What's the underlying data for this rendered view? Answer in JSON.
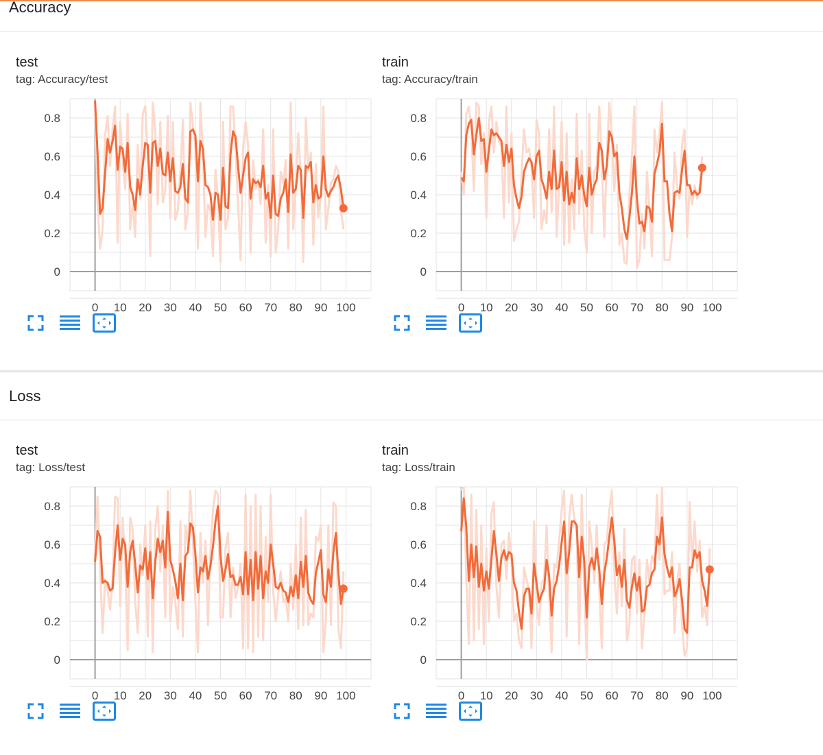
{
  "sections": [
    {
      "title": "Accuracy",
      "cards": [
        {
          "title": "test",
          "tag": "tag: Accuracy/test",
          "chart_data": {
            "type": "line",
            "xlim": [
              -10,
              110
            ],
            "ylim": [
              -0.1,
              0.9
            ],
            "x_ticks": [
              "0",
              "10",
              "20",
              "30",
              "40",
              "50",
              "60",
              "70",
              "80",
              "90",
              "100"
            ],
            "y_ticks": [
              "0",
              "0.2",
              "0.4",
              "0.6",
              "0.8"
            ],
            "grid": true,
            "colors": {
              "smoothed": "#f26b3a",
              "raw": "#fcd9cc"
            },
            "smoothed": [
              0.89,
              0.62,
              0.3,
              0.33,
              0.51,
              0.69,
              0.62,
              0.68,
              0.76,
              0.53,
              0.65,
              0.64,
              0.52,
              0.67,
              0.44,
              0.4,
              0.32,
              0.48,
              0.4,
              0.55,
              0.67,
              0.66,
              0.41,
              0.67,
              0.68,
              0.55,
              0.64,
              0.51,
              0.5,
              0.62,
              0.47,
              0.59,
              0.42,
              0.41,
              0.44,
              0.56,
              0.38,
              0.36,
              0.73,
              0.74,
              0.71,
              0.47,
              0.68,
              0.64,
              0.45,
              0.44,
              0.4,
              0.27,
              0.41,
              0.4,
              0.27,
              0.54,
              0.34,
              0.33,
              0.61,
              0.73,
              0.7,
              0.55,
              0.41,
              0.5,
              0.59,
              0.62,
              0.38,
              0.48,
              0.46,
              0.47,
              0.44,
              0.55,
              0.38,
              0.41,
              0.28,
              0.5,
              0.3,
              0.29,
              0.38,
              0.41,
              0.48,
              0.31,
              0.61,
              0.41,
              0.43,
              0.55,
              0.53,
              0.28,
              0.55,
              0.54,
              0.57,
              0.36,
              0.45,
              0.38,
              0.39,
              0.6,
              0.43,
              0.39,
              0.42,
              0.44,
              0.48,
              0.5,
              0.43,
              0.33
            ],
            "raw": [
              0.86,
              0.35,
              0.12,
              0.22,
              0.71,
              0.81,
              0.55,
              0.74,
              0.86,
              0.15,
              0.78,
              0.58,
              0.43,
              0.82,
              0.22,
              0.35,
              0.18,
              0.66,
              0.38,
              0.82,
              0.86,
              0.62,
              0.08,
              0.88,
              0.74,
              0.35,
              0.78,
              0.36,
              0.42,
              0.81,
              0.28,
              0.78,
              0.27,
              0.32,
              0.52,
              0.79,
              0.22,
              0.31,
              0.88,
              0.76,
              0.64,
              0.12,
              0.88,
              0.61,
              0.18,
              0.35,
              0.32,
              0.08,
              0.53,
              0.38,
              0.05,
              0.78,
              0.22,
              0.28,
              0.86,
              0.86,
              0.63,
              0.35,
              0.06,
              0.64,
              0.78,
              0.66,
              0.1,
              0.58,
              0.43,
              0.48,
              0.35,
              0.74,
              0.15,
              0.45,
              0.08,
              0.74,
              0.1,
              0.22,
              0.52,
              0.46,
              0.58,
              0.12,
              0.88,
              0.22,
              0.44,
              0.72,
              0.5,
              0.05,
              0.8,
              0.53,
              0.62,
              0.14,
              0.56,
              0.28,
              0.4,
              0.86,
              0.22,
              0.33,
              0.46,
              0.48,
              0.55,
              0.52,
              0.32,
              0.22
            ]
          }
        },
        {
          "title": "train",
          "tag": "tag: Accuracy/train",
          "chart_data": {
            "type": "line",
            "xlim": [
              -10,
              110
            ],
            "ylim": [
              -0.1,
              0.9
            ],
            "x_ticks": [
              "0",
              "10",
              "20",
              "30",
              "40",
              "50",
              "60",
              "70",
              "80",
              "90",
              "100"
            ],
            "y_ticks": [
              "0",
              "0.2",
              "0.4",
              "0.6",
              "0.8"
            ],
            "grid": true,
            "colors": {
              "smoothed": "#f26b3a",
              "raw": "#fcd9cc"
            },
            "smoothed": [
              0.49,
              0.47,
              0.71,
              0.77,
              0.79,
              0.61,
              0.71,
              0.8,
              0.68,
              0.69,
              0.52,
              0.63,
              0.74,
              0.71,
              0.72,
              0.7,
              0.68,
              0.55,
              0.66,
              0.57,
              0.64,
              0.45,
              0.38,
              0.33,
              0.39,
              0.52,
              0.56,
              0.59,
              0.57,
              0.48,
              0.6,
              0.63,
              0.48,
              0.44,
              0.38,
              0.52,
              0.43,
              0.63,
              0.43,
              0.44,
              0.57,
              0.37,
              0.52,
              0.35,
              0.41,
              0.36,
              0.59,
              0.43,
              0.5,
              0.4,
              0.34,
              0.54,
              0.4,
              0.45,
              0.48,
              0.67,
              0.63,
              0.48,
              0.55,
              0.73,
              0.7,
              0.6,
              0.62,
              0.41,
              0.33,
              0.22,
              0.17,
              0.28,
              0.41,
              0.6,
              0.38,
              0.25,
              0.26,
              0.21,
              0.34,
              0.33,
              0.26,
              0.51,
              0.56,
              0.62,
              0.77,
              0.47,
              0.47,
              0.3,
              0.21,
              0.41,
              0.42,
              0.41,
              0.53,
              0.63,
              0.45,
              0.45,
              0.4,
              0.42,
              0.4,
              0.41,
              0.54
            ],
            "raw": [
              0.52,
              0.4,
              0.82,
              0.86,
              0.74,
              0.42,
              0.88,
              0.86,
              0.56,
              0.72,
              0.28,
              0.78,
              0.86,
              0.62,
              0.78,
              0.68,
              0.65,
              0.28,
              0.86,
              0.36,
              0.72,
              0.16,
              0.22,
              0.26,
              0.5,
              0.74,
              0.62,
              0.64,
              0.54,
              0.28,
              0.79,
              0.72,
              0.22,
              0.32,
              0.25,
              0.74,
              0.31,
              0.86,
              0.18,
              0.45,
              0.78,
              0.14,
              0.72,
              0.15,
              0.48,
              0.22,
              0.82,
              0.3,
              0.63,
              0.23,
              0.1,
              0.82,
              0.2,
              0.52,
              0.55,
              0.86,
              0.58,
              0.18,
              0.6,
              0.88,
              0.72,
              0.42,
              0.66,
              0.14,
              0.2,
              0.05,
              0.04,
              0.4,
              0.6,
              0.86,
              0.02,
              0.06,
              0.3,
              0.12,
              0.52,
              0.32,
              0.08,
              0.74,
              0.62,
              0.72,
              0.88,
              0.06,
              0.06,
              0.06,
              0.18,
              0.62,
              0.45,
              0.38,
              0.66,
              0.74,
              0.18,
              0.44,
              0.35,
              0.45,
              0.38,
              0.44,
              0.6
            ]
          }
        }
      ]
    },
    {
      "title": "Loss",
      "cards": [
        {
          "title": "test",
          "tag": "tag: Loss/test",
          "chart_data": {
            "type": "line",
            "xlim": [
              -10,
              110
            ],
            "ylim": [
              -0.1,
              0.9
            ],
            "x_ticks": [
              "0",
              "10",
              "20",
              "30",
              "40",
              "50",
              "60",
              "70",
              "80",
              "90",
              "100"
            ],
            "y_ticks": [
              "0",
              "0.2",
              "0.4",
              "0.6",
              "0.8"
            ],
            "grid": true,
            "colors": {
              "smoothed": "#f26b3a",
              "raw": "#fcd9cc"
            },
            "smoothed": [
              0.51,
              0.67,
              0.64,
              0.4,
              0.41,
              0.4,
              0.36,
              0.37,
              0.56,
              0.7,
              0.52,
              0.63,
              0.6,
              0.38,
              0.56,
              0.62,
              0.5,
              0.35,
              0.49,
              0.47,
              0.58,
              0.42,
              0.56,
              0.32,
              0.51,
              0.63,
              0.56,
              0.62,
              0.48,
              0.77,
              0.52,
              0.47,
              0.41,
              0.32,
              0.5,
              0.31,
              0.54,
              0.56,
              0.71,
              0.69,
              0.55,
              0.35,
              0.48,
              0.46,
              0.54,
              0.42,
              0.49,
              0.59,
              0.72,
              0.8,
              0.54,
              0.41,
              0.47,
              0.55,
              0.43,
              0.44,
              0.39,
              0.39,
              0.43,
              0.34,
              0.56,
              0.34,
              0.52,
              0.31,
              0.56,
              0.37,
              0.54,
              0.32,
              0.46,
              0.4,
              0.6,
              0.5,
              0.38,
              0.37,
              0.4,
              0.36,
              0.35,
              0.3,
              0.38,
              0.33,
              0.44,
              0.32,
              0.51,
              0.38,
              0.54,
              0.35,
              0.31,
              0.29,
              0.45,
              0.51,
              0.57,
              0.34,
              0.3,
              0.47,
              0.38,
              0.56,
              0.66,
              0.45,
              0.29,
              0.37
            ],
            "raw": [
              0.55,
              0.85,
              0.48,
              0.14,
              0.42,
              0.36,
              0.26,
              0.42,
              0.85,
              0.84,
              0.28,
              0.74,
              0.52,
              0.05,
              0.74,
              0.68,
              0.3,
              0.14,
              0.6,
              0.44,
              0.7,
              0.12,
              0.72,
              0.04,
              0.68,
              0.8,
              0.46,
              0.7,
              0.22,
              0.88,
              0.2,
              0.38,
              0.3,
              0.16,
              0.72,
              0.12,
              0.7,
              0.6,
              0.88,
              0.62,
              0.3,
              0.04,
              0.66,
              0.4,
              0.62,
              0.18,
              0.58,
              0.78,
              0.88,
              0.86,
              0.22,
              0.22,
              0.58,
              0.66,
              0.22,
              0.48,
              0.32,
              0.38,
              0.5,
              0.06,
              0.86,
              0.06,
              0.8,
              0.04,
              0.86,
              0.12,
              0.8,
              0.1,
              0.64,
              0.3,
              0.86,
              0.36,
              0.2,
              0.34,
              0.46,
              0.3,
              0.32,
              0.2,
              0.5,
              0.26,
              0.6,
              0.16,
              0.74,
              0.18,
              0.78,
              0.18,
              0.24,
              0.22,
              0.64,
              0.62,
              0.7,
              0.04,
              0.2,
              0.7,
              0.18,
              0.82,
              0.8,
              0.16,
              0.06,
              0.46
            ]
          }
        },
        {
          "title": "train",
          "tag": "tag: Loss/train",
          "chart_data": {
            "type": "line",
            "xlim": [
              -10,
              110
            ],
            "ylim": [
              -0.1,
              0.9
            ],
            "x_ticks": [
              "0",
              "10",
              "20",
              "30",
              "40",
              "50",
              "60",
              "70",
              "80",
              "90",
              "100"
            ],
            "y_ticks": [
              "0",
              "0.2",
              "0.4",
              "0.6",
              "0.8"
            ],
            "grid": true,
            "colors": {
              "smoothed": "#f26b3a",
              "raw": "#fcd9cc"
            },
            "smoothed": [
              0.67,
              0.84,
              0.69,
              0.41,
              0.6,
              0.43,
              0.59,
              0.38,
              0.5,
              0.36,
              0.46,
              0.37,
              0.52,
              0.67,
              0.55,
              0.41,
              0.53,
              0.57,
              0.52,
              0.56,
              0.55,
              0.4,
              0.36,
              0.25,
              0.16,
              0.33,
              0.37,
              0.37,
              0.24,
              0.5,
              0.4,
              0.3,
              0.34,
              0.37,
              0.52,
              0.44,
              0.23,
              0.37,
              0.41,
              0.49,
              0.61,
              0.72,
              0.45,
              0.56,
              0.72,
              0.72,
              0.7,
              0.43,
              0.64,
              0.52,
              0.22,
              0.48,
              0.53,
              0.47,
              0.58,
              0.47,
              0.29,
              0.45,
              0.53,
              0.64,
              0.74,
              0.62,
              0.44,
              0.49,
              0.38,
              0.52,
              0.31,
              0.27,
              0.38,
              0.45,
              0.36,
              0.43,
              0.25,
              0.26,
              0.38,
              0.39,
              0.45,
              0.47,
              0.64,
              0.6,
              0.74,
              0.55,
              0.48,
              0.43,
              0.48,
              0.33,
              0.36,
              0.42,
              0.31,
              0.16,
              0.14,
              0.48,
              0.48,
              0.57,
              0.53,
              0.56,
              0.41,
              0.36,
              0.28,
              0.47
            ],
            "raw": [
              0.88,
              0.92,
              0.42,
              0.08,
              0.86,
              0.1,
              0.78,
              0.16,
              0.7,
              0.08,
              0.58,
              0.2,
              0.76,
              0.82,
              0.38,
              0.22,
              0.6,
              0.62,
              0.42,
              0.66,
              0.52,
              0.2,
              0.24,
              0.1,
              0.06,
              0.48,
              0.42,
              0.36,
              0.06,
              0.72,
              0.3,
              0.18,
              0.4,
              0.42,
              0.7,
              0.34,
              0.04,
              0.5,
              0.48,
              0.62,
              0.78,
              0.88,
              0.12,
              0.74,
              0.86,
              0.74,
              0.66,
              0.08,
              0.86,
              0.38,
              0.0,
              0.72,
              0.6,
              0.4,
              0.7,
              0.36,
              0.06,
              0.6,
              0.62,
              0.78,
              0.88,
              0.46,
              0.24,
              0.56,
              0.28,
              0.68,
              0.1,
              0.18,
              0.52,
              0.54,
              0.24,
              0.52,
              0.06,
              0.24,
              0.52,
              0.4,
              0.54,
              0.5,
              0.86,
              0.52,
              0.9,
              0.34,
              0.36,
              0.36,
              0.56,
              0.14,
              0.4,
              0.5,
              0.18,
              0.02,
              0.06,
              0.82,
              0.5,
              0.72,
              0.46,
              0.62,
              0.22,
              0.28,
              0.18,
              0.58
            ]
          }
        }
      ]
    }
  ]
}
